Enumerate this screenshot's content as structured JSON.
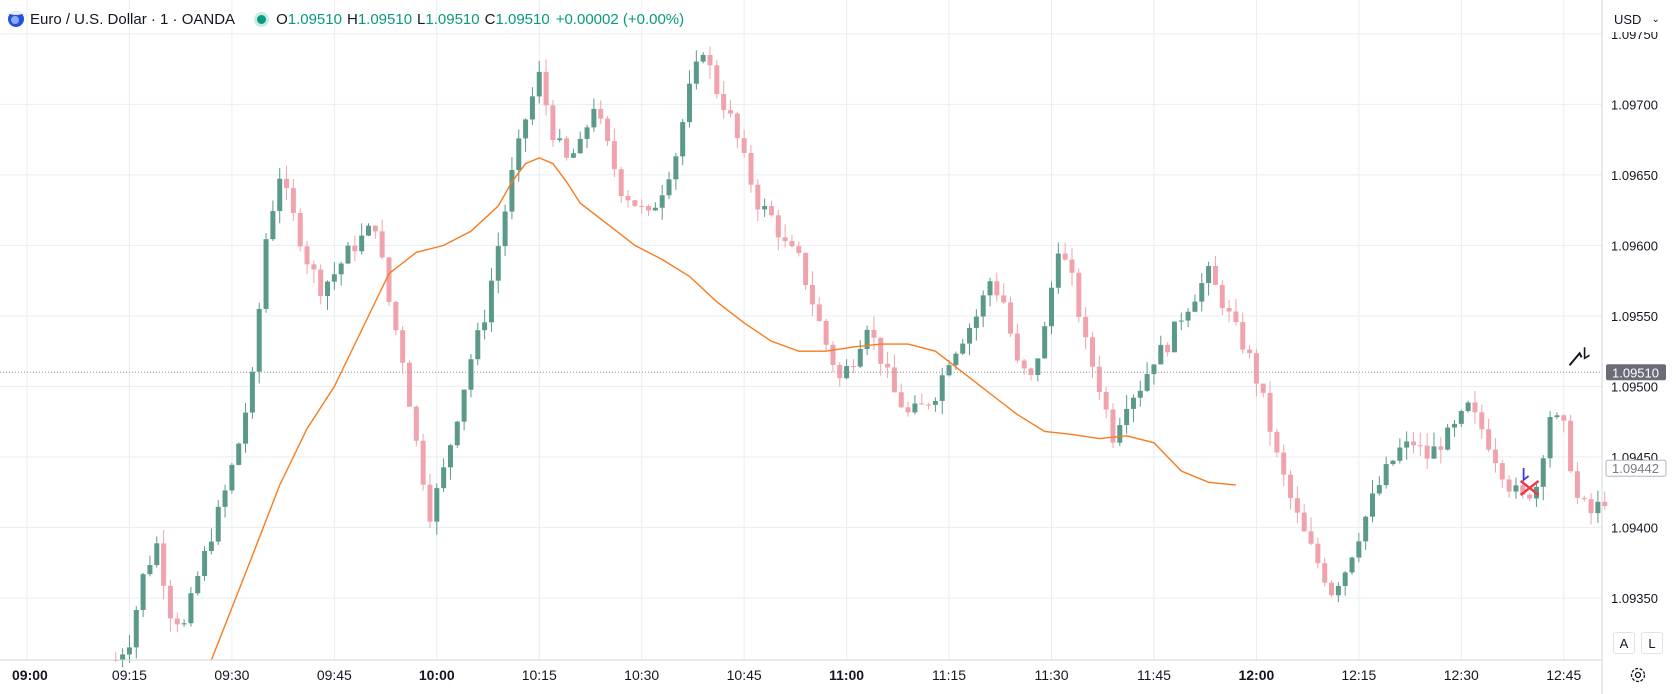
{
  "legend": {
    "title": "Euro / U.S. Dollar · 1 · OANDA",
    "o_label": "O",
    "o": "1.09510",
    "h_label": "H",
    "h": "1.09510",
    "l_label": "L",
    "l": "1.09510",
    "c_label": "C",
    "c": "1.09510",
    "change": "+0.00002 (+0.00%)"
  },
  "currency": {
    "label": "USD"
  },
  "axis_buttons": {
    "auto": "A",
    "log": "L"
  },
  "colors": {
    "up": "#5b9a8b",
    "down": "#f0a3ac",
    "ma": "#f57c1f",
    "grid": "#e8edf3"
  },
  "chart_data": {
    "type": "candlestick",
    "x_ticks": [
      {
        "label": "09:00",
        "bold": true,
        "i": 0
      },
      {
        "label": "09:15",
        "bold": false,
        "i": 15
      },
      {
        "label": "09:30",
        "bold": false,
        "i": 30
      },
      {
        "label": "09:45",
        "bold": false,
        "i": 45
      },
      {
        "label": "10:00",
        "bold": true,
        "i": 60
      },
      {
        "label": "10:15",
        "bold": false,
        "i": 75
      },
      {
        "label": "10:30",
        "bold": false,
        "i": 90
      },
      {
        "label": "10:45",
        "bold": false,
        "i": 105
      },
      {
        "label": "11:00",
        "bold": true,
        "i": 120
      },
      {
        "label": "11:15",
        "bold": false,
        "i": 135
      },
      {
        "label": "11:30",
        "bold": false,
        "i": 150
      },
      {
        "label": "11:45",
        "bold": false,
        "i": 165
      },
      {
        "label": "12:00",
        "bold": true,
        "i": 180
      },
      {
        "label": "12:15",
        "bold": false,
        "i": 195
      },
      {
        "label": "12:30",
        "bold": false,
        "i": 210
      },
      {
        "label": "12:45",
        "bold": false,
        "i": 225
      }
    ],
    "y_ticks": [
      "1.09750",
      "1.09700",
      "1.09650",
      "1.09600",
      "1.09550",
      "1.09500",
      "1.09450",
      "1.09400",
      "1.09350"
    ],
    "y_range": [
      1.09306,
      1.09774
    ],
    "current_price": 1.0951,
    "current_price_label": "1.09510",
    "ma_label": "1.09442",
    "ma_value": 1.09442,
    "close_path": [
      [
        13,
        1.09306
      ],
      [
        15,
        1.0932
      ],
      [
        17,
        1.09365
      ],
      [
        19,
        1.09388
      ],
      [
        21,
        1.0934
      ],
      [
        23,
        1.0933
      ],
      [
        25,
        1.09365
      ],
      [
        27,
        1.09395
      ],
      [
        29,
        1.09425
      ],
      [
        31,
        1.0946
      ],
      [
        33,
        1.09505
      ],
      [
        35,
        1.09605
      ],
      [
        37,
        1.0965
      ],
      [
        39,
        1.0962
      ],
      [
        41,
        1.0959
      ],
      [
        43,
        1.0957
      ],
      [
        45,
        1.0958
      ],
      [
        47,
        1.09595
      ],
      [
        49,
        1.09605
      ],
      [
        51,
        1.09615
      ],
      [
        53,
        1.0956
      ],
      [
        55,
        1.0952
      ],
      [
        57,
        1.0946
      ],
      [
        59,
        1.0941
      ],
      [
        61,
        1.0944
      ],
      [
        63,
        1.0948
      ],
      [
        65,
        1.0952
      ],
      [
        67,
        1.0955
      ],
      [
        69,
        1.096
      ],
      [
        71,
        1.0965
      ],
      [
        73,
        1.0969
      ],
      [
        75,
        1.0972
      ],
      [
        77,
        1.0968
      ],
      [
        79,
        1.0966
      ],
      [
        81,
        1.0967
      ],
      [
        83,
        1.097
      ],
      [
        85,
        1.0967
      ],
      [
        87,
        1.0964
      ],
      [
        89,
        1.0963
      ],
      [
        91,
        1.0962
      ],
      [
        93,
        1.0964
      ],
      [
        95,
        1.09665
      ],
      [
        97,
        1.0971
      ],
      [
        99,
        1.0974
      ],
      [
        101,
        1.0971
      ],
      [
        103,
        1.0969
      ],
      [
        105,
        1.0966
      ],
      [
        107,
        1.0963
      ],
      [
        109,
        1.0962
      ],
      [
        111,
        1.096
      ],
      [
        113,
        1.0959
      ],
      [
        115,
        1.0956
      ],
      [
        117,
        1.0953
      ],
      [
        119,
        1.09505
      ],
      [
        121,
        1.0952
      ],
      [
        123,
        1.09545
      ],
      [
        125,
        1.0952
      ],
      [
        127,
        1.09495
      ],
      [
        129,
        1.0948
      ],
      [
        131,
        1.09485
      ],
      [
        133,
        1.09495
      ],
      [
        135,
        1.0952
      ],
      [
        137,
        1.09535
      ],
      [
        139,
        1.0955
      ],
      [
        141,
        1.09575
      ],
      [
        143,
        1.0956
      ],
      [
        145,
        1.09515
      ],
      [
        147,
        1.09505
      ],
      [
        149,
        1.0954
      ],
      [
        151,
        1.096
      ],
      [
        153,
        1.09575
      ],
      [
        155,
        1.0953
      ],
      [
        157,
        1.095
      ],
      [
        159,
        1.09465
      ],
      [
        161,
        1.0949
      ],
      [
        163,
        1.095
      ],
      [
        165,
        1.0952
      ],
      [
        167,
        1.0953
      ],
      [
        169,
        1.0955
      ],
      [
        171,
        1.09565
      ],
      [
        173,
        1.0958
      ],
      [
        175,
        1.0956
      ],
      [
        177,
        1.0954
      ],
      [
        179,
        1.0952
      ],
      [
        181,
        1.0949
      ],
      [
        183,
        1.0945
      ],
      [
        185,
        1.0942
      ],
      [
        187,
        1.09395
      ],
      [
        189,
        1.09375
      ],
      [
        191,
        1.09355
      ],
      [
        193,
        1.0937
      ],
      [
        195,
        1.09395
      ],
      [
        197,
        1.0942
      ],
      [
        199,
        1.0944
      ],
      [
        201,
        1.09455
      ],
      [
        203,
        1.0946
      ],
      [
        205,
        1.0945
      ],
      [
        207,
        1.0946
      ],
      [
        209,
        1.0947
      ],
      [
        211,
        1.09485
      ],
      [
        213,
        1.0947
      ],
      [
        215,
        1.0945
      ],
      [
        217,
        1.0943
      ],
      [
        219,
        1.0942
      ],
      [
        221,
        1.0943
      ],
      [
        223,
        1.0948
      ],
      [
        225,
        1.0947
      ],
      [
        227,
        1.0942
      ],
      [
        229,
        1.0941
      ],
      [
        231,
        1.0942
      ]
    ],
    "ma_path": [
      [
        27,
        1.09306
      ],
      [
        33,
        1.0938
      ],
      [
        37,
        1.0943
      ],
      [
        41,
        1.0947
      ],
      [
        45,
        1.095
      ],
      [
        49,
        1.0954
      ],
      [
        53,
        1.0958
      ],
      [
        57,
        1.09595
      ],
      [
        61,
        1.096
      ],
      [
        65,
        1.0961
      ],
      [
        69,
        1.09628
      ],
      [
        71,
        1.09645
      ],
      [
        73,
        1.09658
      ],
      [
        75,
        1.09662
      ],
      [
        77,
        1.09658
      ],
      [
        79,
        1.09645
      ],
      [
        81,
        1.0963
      ],
      [
        85,
        1.09615
      ],
      [
        89,
        1.096
      ],
      [
        93,
        1.0959
      ],
      [
        97,
        1.09578
      ],
      [
        101,
        1.0956
      ],
      [
        105,
        1.09545
      ],
      [
        109,
        1.09532
      ],
      [
        113,
        1.09525
      ],
      [
        117,
        1.09525
      ],
      [
        121,
        1.09528
      ],
      [
        125,
        1.0953
      ],
      [
        129,
        1.0953
      ],
      [
        133,
        1.09525
      ],
      [
        137,
        1.0951
      ],
      [
        141,
        1.09495
      ],
      [
        145,
        1.0948
      ],
      [
        149,
        1.09468
      ],
      [
        153,
        1.09466
      ],
      [
        157,
        1.09463
      ],
      [
        161,
        1.09465
      ],
      [
        165,
        1.0946
      ],
      [
        169,
        1.0944
      ],
      [
        173,
        1.09432
      ],
      [
        177,
        1.0943
      ]
    ]
  }
}
